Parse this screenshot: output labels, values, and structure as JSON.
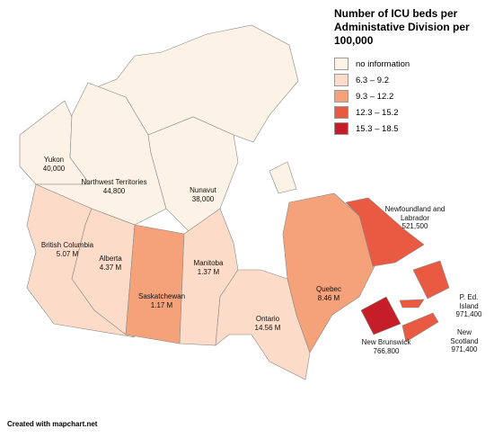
{
  "title": "Number of ICU beds per Administative Division per 100,000",
  "legend": [
    {
      "label": "no information",
      "color": "#fcf3e6"
    },
    {
      "label": "6.3 – 9.2",
      "color": "#fcdcc8"
    },
    {
      "label": "9.3 – 12.2",
      "color": "#f5a27b"
    },
    {
      "label": "12.3 – 15.2",
      "color": "#ea5a43"
    },
    {
      "label": "15.3 – 18.5",
      "color": "#c61e28"
    }
  ],
  "regions": [
    {
      "name": "Yukon",
      "population": "40,000",
      "color": "#fcf3e6"
    },
    {
      "name": "Northwest Territories",
      "population": "44,800",
      "color": "#fcf3e6"
    },
    {
      "name": "Nunavut",
      "population": "38,000",
      "color": "#fcf3e6"
    },
    {
      "name": "British Columbia",
      "population": "5.07 M",
      "color": "#fcdcc8"
    },
    {
      "name": "Alberta",
      "population": "4.37 M",
      "color": "#fcdcc8"
    },
    {
      "name": "Saskatchewan",
      "population": "1.17 M",
      "color": "#f5a27b"
    },
    {
      "name": "Manitoba",
      "population": "1.37 M",
      "color": "#fcdcc8"
    },
    {
      "name": "Ontario",
      "population": "14.56 M",
      "color": "#fcdcc8"
    },
    {
      "name": "Quebec",
      "population": "8.46 M",
      "color": "#f5a27b"
    },
    {
      "name": "Newfoundland and Labrador",
      "population": "521,500",
      "color": "#ea5a43"
    },
    {
      "name": "P. Ed. Island",
      "population": "971,400",
      "color": "#ea5a43"
    },
    {
      "name": "New Scotland",
      "population": "971,400",
      "color": "#ea5a43"
    },
    {
      "name": "New Brunswick",
      "population": "766,800",
      "color": "#c61e28"
    }
  ],
  "credit": "Created with mapchart.net"
}
